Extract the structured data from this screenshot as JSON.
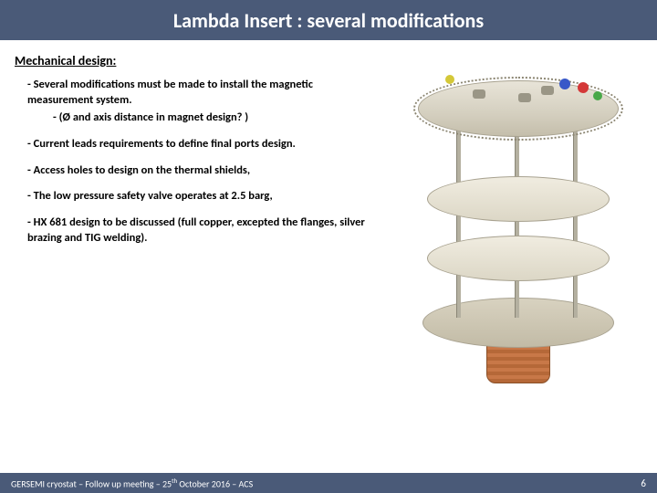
{
  "title": "Lambda Insert : several modifications",
  "section_heading": "Mechanical design:",
  "bullets": {
    "b1": "- Several modifications must be made to install the magnetic measurement system.",
    "b1_sub": "- (Ø and axis distance in magnet design? )",
    "b2": "- Current leads requirements to define final ports design.",
    "b3": "- Access holes to design on the thermal shields,",
    "b4": "- The low pressure safety valve operates at 2.5 barg,",
    "b5": "- HX 681 design to be discussed (full copper, excepted the flanges, silver brazing and TIG welding)."
  },
  "footer": {
    "text_pre": "GERSEMI cryostat – Follow up meeting – 25",
    "text_sup": "th",
    "text_post": " October 2016 – ACS",
    "page": "6"
  },
  "colors": {
    "bar": "#4a5a78",
    "plate_light": "#e8e4d8",
    "plate_dark": "#c4beab",
    "copper": "#c87848"
  }
}
